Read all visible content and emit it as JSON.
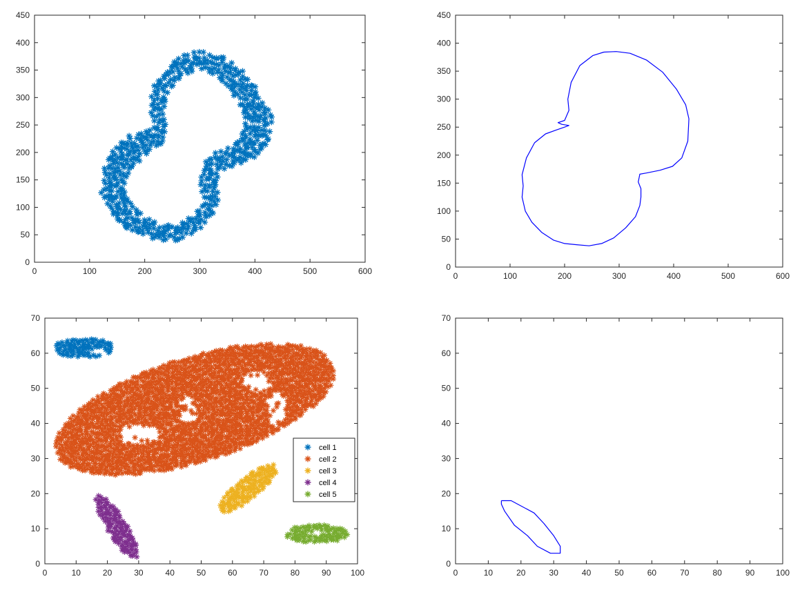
{
  "figure": {
    "background": "#ffffff",
    "axis_color": "#262626"
  },
  "chart_data": [
    {
      "id": "top-left",
      "type": "scatter",
      "marker": "*",
      "xlim": [
        0,
        600
      ],
      "ylim": [
        0,
        450
      ],
      "xticks": [
        0,
        100,
        200,
        300,
        400,
        500,
        600
      ],
      "yticks": [
        0,
        50,
        100,
        150,
        200,
        250,
        300,
        350,
        400,
        450
      ],
      "grid": false,
      "series": [
        {
          "color": "#0072BD",
          "shape": "annulus",
          "outer": [
            [
              300,
              385
            ],
            [
              340,
              375
            ],
            [
              375,
              352
            ],
            [
              402,
              318
            ],
            [
              425,
              282
            ],
            [
              432,
              262
            ],
            [
              428,
              220
            ],
            [
              405,
              190
            ],
            [
              360,
              175
            ],
            [
              335,
              165
            ],
            [
              330,
              148
            ],
            [
              336,
              120
            ],
            [
              322,
              85
            ],
            [
              295,
              55
            ],
            [
              255,
              38
            ],
            [
              215,
              42
            ],
            [
              168,
              58
            ],
            [
              135,
              88
            ],
            [
              120,
              125
            ],
            [
              122,
              165
            ],
            [
              140,
              205
            ],
            [
              170,
              230
            ],
            [
              200,
              240
            ],
            [
              216,
              248
            ],
            [
              212,
              262
            ],
            [
              208,
              285
            ],
            [
              216,
              320
            ],
            [
              240,
              352
            ],
            [
              268,
              378
            ]
          ],
          "inner": [
            [
              300,
              352
            ],
            [
              330,
              340
            ],
            [
              355,
              315
            ],
            [
              372,
              282
            ],
            [
              382,
              255
            ],
            [
              375,
              225
            ],
            [
              355,
              210
            ],
            [
              328,
              200
            ],
            [
              305,
              178
            ],
            [
              300,
              150
            ],
            [
              306,
              118
            ],
            [
              292,
              90
            ],
            [
              268,
              72
            ],
            [
              240,
              68
            ],
            [
              208,
              80
            ],
            [
              180,
              100
            ],
            [
              165,
              125
            ],
            [
              168,
              158
            ],
            [
              185,
              180
            ],
            [
              212,
              200
            ],
            [
              236,
              222
            ],
            [
              238,
              255
            ],
            [
              235,
              285
            ],
            [
              245,
              315
            ],
            [
              270,
              342
            ]
          ]
        }
      ]
    },
    {
      "id": "top-right",
      "type": "line",
      "xlim": [
        0,
        600
      ],
      "ylim": [
        0,
        450
      ],
      "xticks": [
        0,
        100,
        200,
        300,
        400,
        500,
        600
      ],
      "yticks": [
        0,
        50,
        100,
        150,
        200,
        250,
        300,
        350,
        400,
        450
      ],
      "grid": false,
      "series": [
        {
          "color": "#0000FF",
          "points": [
            [
              295,
              385
            ],
            [
              320,
              382
            ],
            [
              350,
              370
            ],
            [
              380,
              348
            ],
            [
              405,
              318
            ],
            [
              422,
              290
            ],
            [
              428,
              265
            ],
            [
              426,
              225
            ],
            [
              415,
              195
            ],
            [
              398,
              180
            ],
            [
              375,
              173
            ],
            [
              350,
              168
            ],
            [
              338,
              166
            ],
            [
              335,
              152
            ],
            [
              340,
              140
            ],
            [
              340,
              125
            ],
            [
              338,
              110
            ],
            [
              330,
              90
            ],
            [
              312,
              70
            ],
            [
              290,
              52
            ],
            [
              268,
              42
            ],
            [
              245,
              38
            ],
            [
              222,
              40
            ],
            [
              200,
              42
            ],
            [
              180,
              48
            ],
            [
              158,
              62
            ],
            [
              140,
              80
            ],
            [
              128,
              100
            ],
            [
              122,
              125
            ],
            [
              124,
              145
            ],
            [
              122,
              165
            ],
            [
              130,
              195
            ],
            [
              145,
              222
            ],
            [
              165,
              238
            ],
            [
              185,
              245
            ],
            [
              200,
              250
            ],
            [
              208,
              253
            ],
            [
              195,
              255
            ],
            [
              188,
              258
            ],
            [
              200,
              262
            ],
            [
              208,
              280
            ],
            [
              206,
              300
            ],
            [
              212,
              330
            ],
            [
              228,
              360
            ],
            [
              252,
              378
            ],
            [
              272,
              384
            ],
            [
              295,
              385
            ]
          ]
        }
      ]
    },
    {
      "id": "bottom-left",
      "type": "scatter",
      "marker": "*",
      "xlim": [
        0,
        100
      ],
      "ylim": [
        0,
        70
      ],
      "xticks": [
        0,
        10,
        20,
        30,
        40,
        50,
        60,
        70,
        80,
        90,
        100
      ],
      "yticks": [
        0,
        10,
        20,
        30,
        40,
        50,
        60,
        70
      ],
      "grid": false,
      "legend": {
        "position": "right-middle",
        "entries": [
          "cell 1",
          "cell 2",
          "cell 3",
          "cell 4",
          "cell 5"
        ]
      },
      "series": [
        {
          "name": "cell 1",
          "color": "#0072BD",
          "shape": "ellipse",
          "cx": 12.5,
          "cy": 61.5,
          "rx": 9.5,
          "ry": 2.8,
          "angle": 0,
          "holes": [
            [
              17,
              60.5,
              2.5,
              1.0
            ]
          ]
        },
        {
          "name": "cell 2",
          "color": "#D95319",
          "shape": "ellipse",
          "cx": 48,
          "cy": 44,
          "rx": 46,
          "ry": 15,
          "angle": 15,
          "holes": [
            [
              30,
              37,
              7,
              3
            ],
            [
              68,
              52,
              5,
              3
            ],
            [
              74,
              44,
              3,
              5
            ],
            [
              46,
              44,
              3,
              4
            ]
          ]
        },
        {
          "name": "cell 3",
          "color": "#EDB120",
          "shape": "ellipse",
          "cx": 65,
          "cy": 21.5,
          "rx": 11,
          "ry": 3.2,
          "angle": 35,
          "holes": []
        },
        {
          "name": "cell 4",
          "color": "#7E2F8E",
          "shape": "ellipse",
          "cx": 23,
          "cy": 10.5,
          "rx": 11,
          "ry": 3.0,
          "angle": -55,
          "holes": []
        },
        {
          "name": "cell 5",
          "color": "#77AC30",
          "shape": "ellipse",
          "cx": 87,
          "cy": 8.5,
          "rx": 10,
          "ry": 2.6,
          "angle": 0,
          "holes": [
            [
              86,
              8.8,
              2.5,
              0.8
            ]
          ]
        }
      ]
    },
    {
      "id": "bottom-right",
      "type": "line",
      "xlim": [
        0,
        100
      ],
      "ylim": [
        0,
        70
      ],
      "xticks": [
        0,
        10,
        20,
        30,
        40,
        50,
        60,
        70,
        80,
        90,
        100
      ],
      "yticks": [
        0,
        10,
        20,
        30,
        40,
        50,
        60,
        70
      ],
      "grid": false,
      "series": [
        {
          "color": "#0000FF",
          "points": [
            [
              14,
              18
            ],
            [
              17,
              18
            ],
            [
              20,
              16.5
            ],
            [
              24,
              14.5
            ],
            [
              27,
              11.5
            ],
            [
              30,
              8
            ],
            [
              32,
              5
            ],
            [
              32,
              3
            ],
            [
              29,
              3
            ],
            [
              25,
              5
            ],
            [
              22,
              8
            ],
            [
              18,
              11
            ],
            [
              15,
              15
            ],
            [
              14,
              17
            ],
            [
              14,
              18
            ]
          ]
        }
      ]
    }
  ]
}
